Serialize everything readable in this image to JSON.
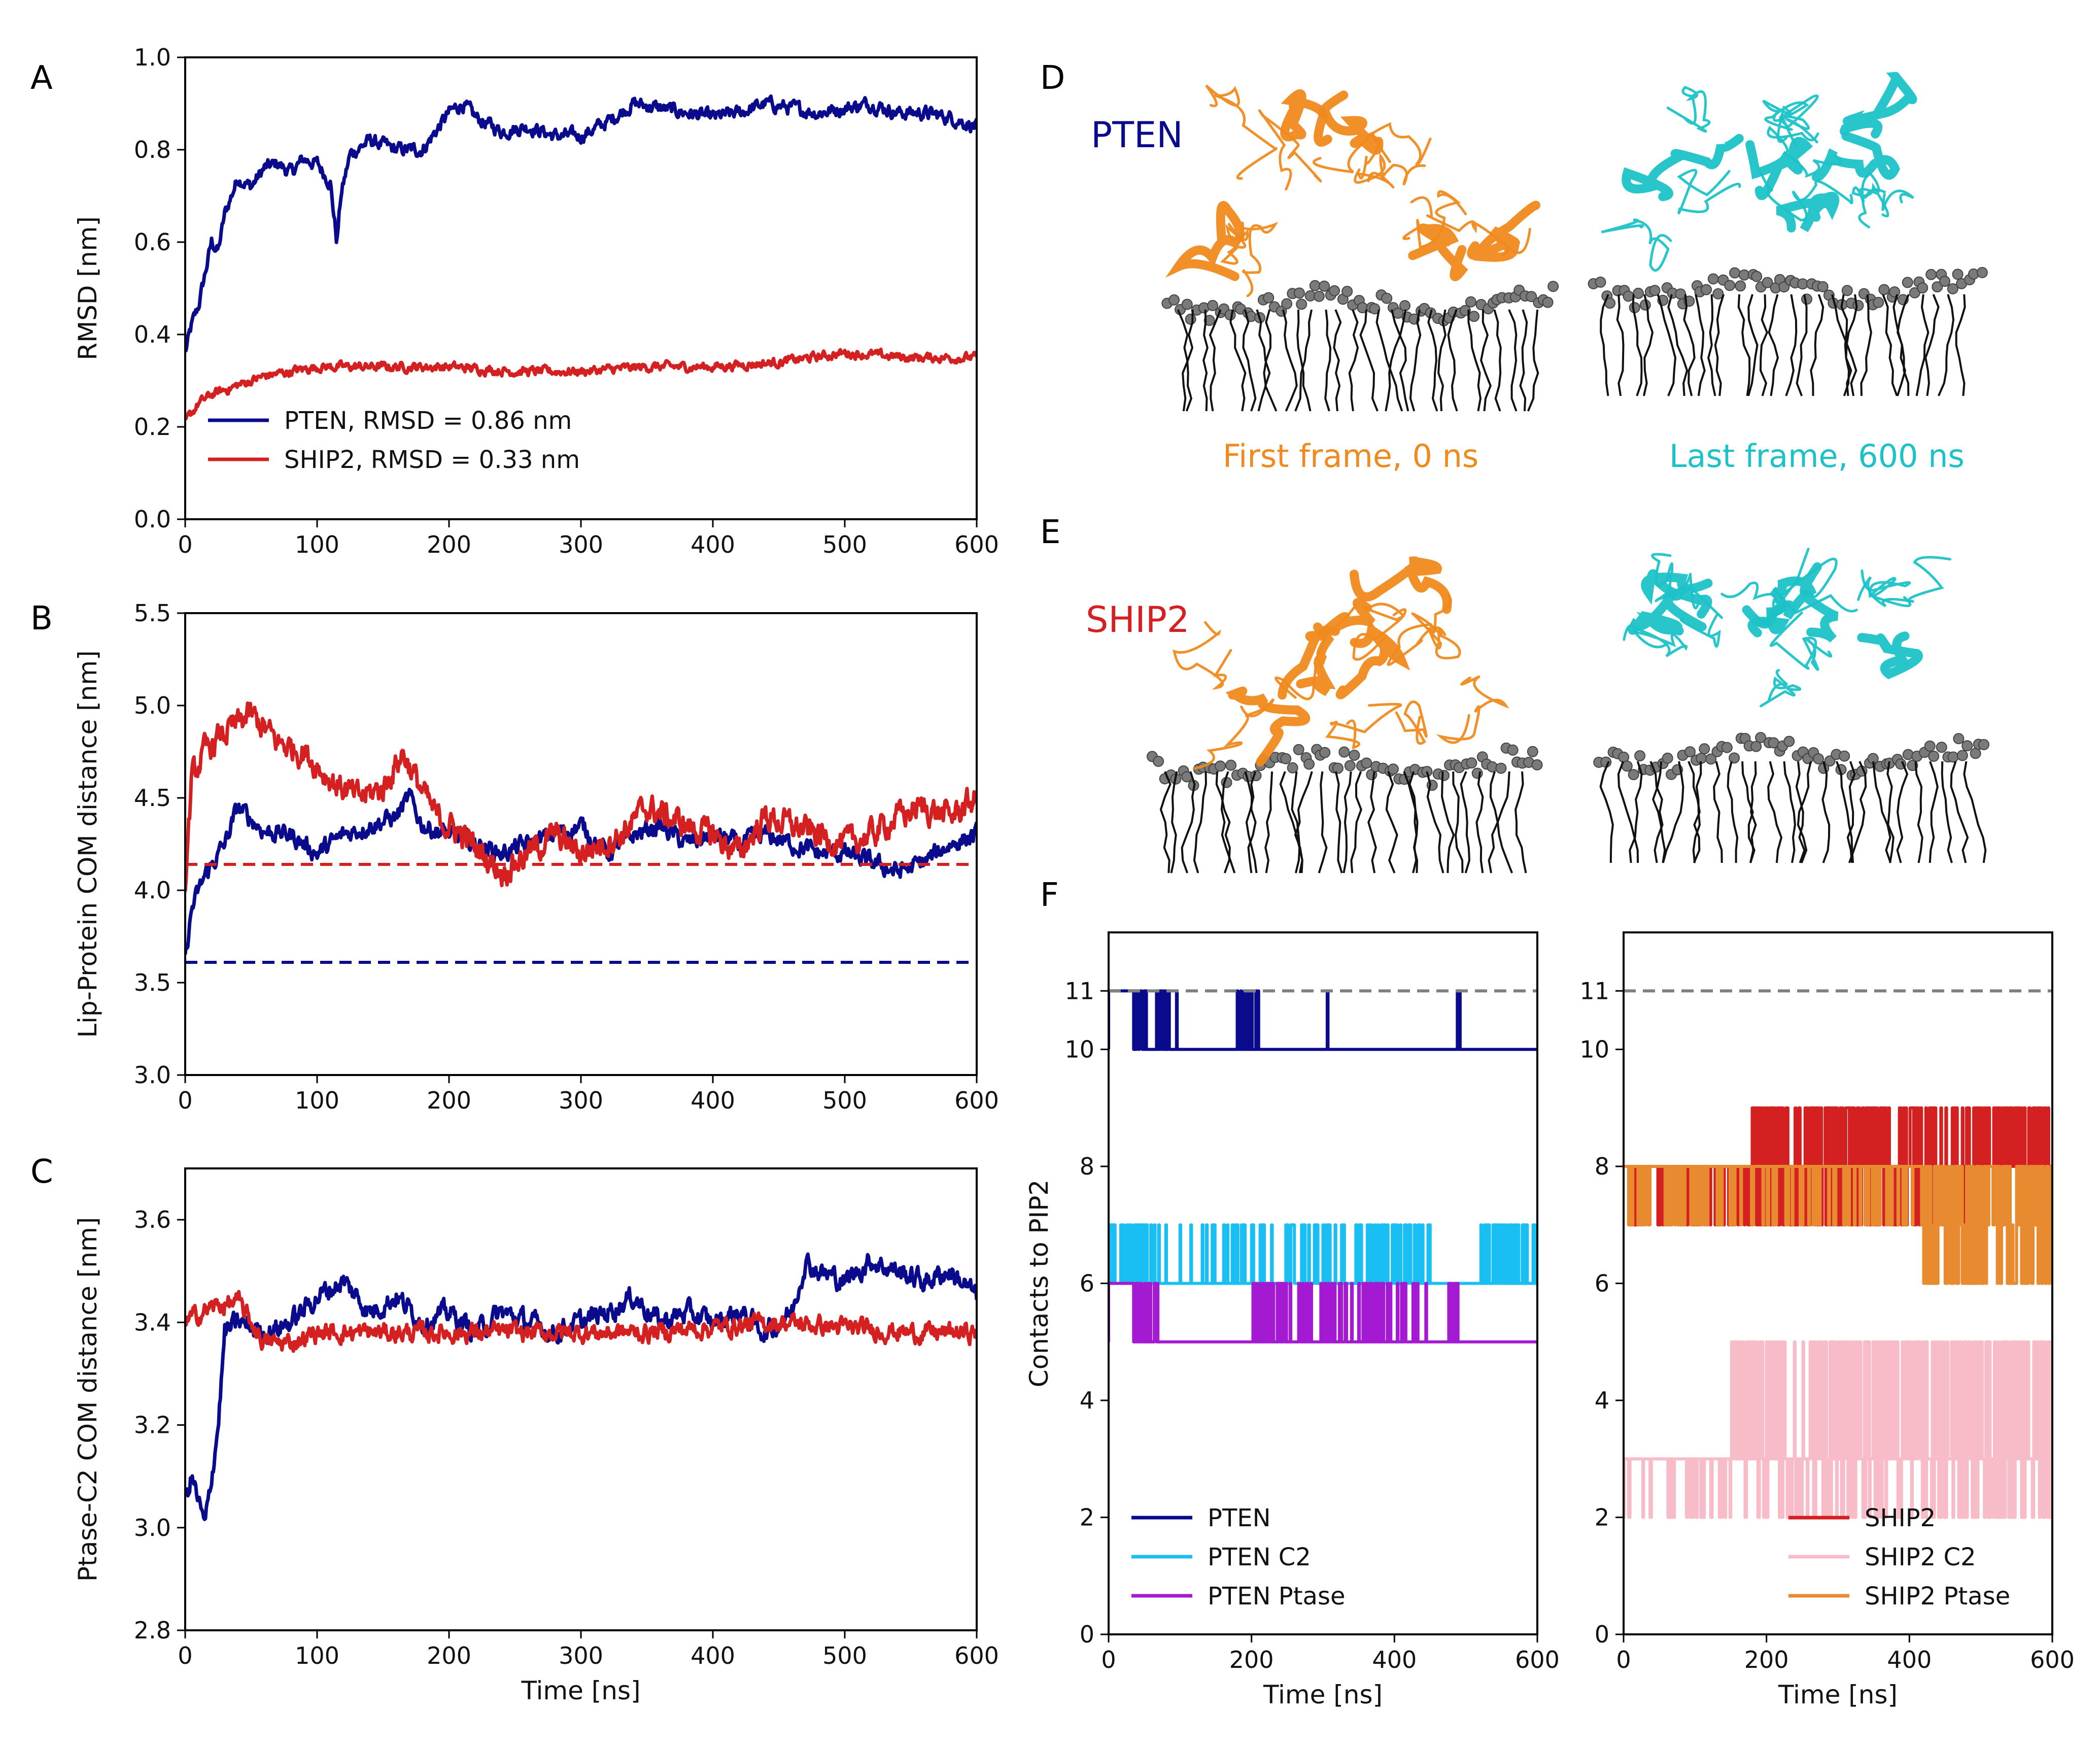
{
  "panel_letters": {
    "A": "A",
    "B": "B",
    "C": "C",
    "D": "D",
    "E": "E",
    "F": "F"
  },
  "colors": {
    "pten": "#0a0a8c",
    "ship2": "#d42020",
    "pten_c2": "#19bff2",
    "pten_ptase": "#a419d2",
    "ship2_c2": "#f7bcc8",
    "ship2_ptase": "#e88a30",
    "ref": "#808080",
    "first_frame": "#f08a1e",
    "last_frame": "#1cc2c8"
  },
  "structures": {
    "pten_label": "PTEN",
    "ship2_label": "SHIP2",
    "first_frame_caption": "First frame, 0 ns",
    "last_frame_caption": "Last frame, 600 ns"
  },
  "chart_data": [
    {
      "id": "A",
      "type": "line",
      "title": "",
      "xlabel": "",
      "ylabel": "RMSD [nm]",
      "xlim": [
        0,
        600
      ],
      "ylim": [
        0.0,
        1.0
      ],
      "xticks": [
        0,
        100,
        200,
        300,
        400,
        500,
        600
      ],
      "yticks": [
        0.0,
        0.2,
        0.4,
        0.6,
        0.8,
        1.0
      ],
      "ytick_labels": [
        "0.0",
        "0.2",
        "0.4",
        "0.6",
        "0.8",
        "1.0"
      ],
      "legend_position": "lower-left",
      "series": [
        {
          "name": "PTEN, RMSD = 0.86 nm",
          "color": "#0a0a8c",
          "noise": 0.018,
          "x": [
            0,
            5,
            10,
            20,
            25,
            30,
            40,
            50,
            60,
            70,
            80,
            90,
            100,
            110,
            115,
            118,
            125,
            140,
            160,
            180,
            190,
            200,
            210,
            220,
            240,
            260,
            280,
            300,
            320,
            340,
            360,
            380,
            400,
            420,
            440,
            460,
            480,
            500,
            520,
            540,
            560,
            580,
            600
          ],
          "y": [
            0.36,
            0.42,
            0.46,
            0.6,
            0.58,
            0.66,
            0.74,
            0.72,
            0.76,
            0.77,
            0.75,
            0.78,
            0.77,
            0.73,
            0.6,
            0.7,
            0.79,
            0.82,
            0.8,
            0.8,
            0.84,
            0.88,
            0.9,
            0.87,
            0.84,
            0.85,
            0.83,
            0.83,
            0.86,
            0.9,
            0.89,
            0.88,
            0.87,
            0.88,
            0.9,
            0.89,
            0.88,
            0.89,
            0.9,
            0.88,
            0.88,
            0.87,
            0.85
          ]
        },
        {
          "name": "SHIP2, RMSD = 0.33 nm",
          "color": "#d42020",
          "noise": 0.012,
          "x": [
            0,
            10,
            20,
            40,
            60,
            80,
            100,
            150,
            200,
            250,
            300,
            350,
            400,
            450,
            500,
            550,
            600
          ],
          "y": [
            0.21,
            0.25,
            0.27,
            0.29,
            0.31,
            0.32,
            0.33,
            0.33,
            0.33,
            0.32,
            0.32,
            0.33,
            0.33,
            0.34,
            0.36,
            0.35,
            0.35
          ]
        }
      ]
    },
    {
      "id": "B",
      "type": "line",
      "title": "",
      "xlabel": "",
      "ylabel": "Lip-Protein COM distance [nm]",
      "xlim": [
        0,
        600
      ],
      "ylim": [
        3.0,
        5.5
      ],
      "xticks": [
        0,
        100,
        200,
        300,
        400,
        500,
        600
      ],
      "yticks": [
        3.0,
        3.5,
        4.0,
        4.5,
        5.0,
        5.5
      ],
      "ytick_labels": [
        "3.0",
        "3.5",
        "4.0",
        "4.5",
        "5.0",
        "5.5"
      ],
      "series": [
        {
          "name": "PTEN",
          "color": "#0a0a8c",
          "noise": 0.06,
          "x": [
            0,
            5,
            15,
            30,
            40,
            60,
            80,
            100,
            120,
            140,
            160,
            170,
            180,
            200,
            220,
            240,
            260,
            280,
            300,
            320,
            340,
            360,
            380,
            400,
            420,
            440,
            460,
            480,
            500,
            520,
            540,
            560,
            580,
            600
          ],
          "y": [
            3.62,
            3.9,
            4.08,
            4.25,
            4.45,
            4.32,
            4.3,
            4.2,
            4.3,
            4.35,
            4.4,
            4.5,
            4.35,
            4.3,
            4.25,
            4.2,
            4.25,
            4.3,
            4.35,
            4.2,
            4.3,
            4.35,
            4.25,
            4.3,
            4.25,
            4.3,
            4.25,
            4.2,
            4.2,
            4.15,
            4.1,
            4.15,
            4.25,
            4.3
          ]
        },
        {
          "name": "SHIP2",
          "color": "#d42020",
          "noise": 0.09,
          "x": [
            0,
            5,
            15,
            30,
            50,
            70,
            90,
            110,
            130,
            150,
            165,
            175,
            190,
            210,
            240,
            260,
            280,
            300,
            330,
            350,
            380,
            400,
            420,
            440,
            460,
            480,
            500,
            520,
            540,
            560,
            580,
            600
          ],
          "y": [
            4.05,
            4.6,
            4.75,
            4.85,
            4.95,
            4.8,
            4.75,
            4.6,
            4.5,
            4.55,
            4.75,
            4.6,
            4.4,
            4.3,
            4.1,
            4.2,
            4.3,
            4.2,
            4.3,
            4.45,
            4.35,
            4.3,
            4.2,
            4.4,
            4.35,
            4.3,
            4.25,
            4.3,
            4.4,
            4.45,
            4.4,
            4.5
          ]
        },
        {
          "name": "PTEN reference",
          "color": "#0a0a8c",
          "dashed": true,
          "x": [
            0,
            600
          ],
          "y": [
            3.61,
            3.61
          ]
        },
        {
          "name": "SHIP2 reference",
          "color": "#d42020",
          "dashed": true,
          "x": [
            0,
            600
          ],
          "y": [
            4.14,
            4.14
          ]
        }
      ]
    },
    {
      "id": "C",
      "type": "line",
      "title": "",
      "xlabel": "Time [ns]",
      "ylabel": "Ptase-C2 COM distance [nm]",
      "xlim": [
        0,
        600
      ],
      "ylim": [
        2.8,
        3.7
      ],
      "xticks": [
        0,
        100,
        200,
        300,
        400,
        500,
        600
      ],
      "yticks": [
        2.8,
        3.0,
        3.2,
        3.4,
        3.6
      ],
      "ytick_labels": [
        "2.8",
        "3.0",
        "3.2",
        "3.4",
        "3.6"
      ],
      "series": [
        {
          "name": "PTEN",
          "color": "#0a0a8c",
          "noise": 0.025,
          "x": [
            0,
            5,
            10,
            15,
            20,
            25,
            30,
            40,
            60,
            80,
            100,
            120,
            140,
            160,
            180,
            200,
            220,
            240,
            260,
            280,
            300,
            320,
            340,
            360,
            380,
            400,
            420,
            440,
            460,
            470,
            480,
            500,
            520,
            540,
            560,
            580,
            600
          ],
          "y": [
            3.05,
            3.1,
            3.05,
            3.0,
            3.1,
            3.2,
            3.38,
            3.4,
            3.38,
            3.4,
            3.45,
            3.48,
            3.42,
            3.45,
            3.4,
            3.42,
            3.38,
            3.42,
            3.4,
            3.38,
            3.4,
            3.42,
            3.45,
            3.4,
            3.42,
            3.4,
            3.42,
            3.38,
            3.42,
            3.52,
            3.5,
            3.48,
            3.52,
            3.5,
            3.48,
            3.5,
            3.45
          ]
        },
        {
          "name": "SHIP2",
          "color": "#d42020",
          "noise": 0.022,
          "x": [
            0,
            20,
            40,
            60,
            80,
            100,
            150,
            200,
            250,
            300,
            350,
            400,
            450,
            500,
            550,
            600
          ],
          "y": [
            3.4,
            3.43,
            3.44,
            3.36,
            3.36,
            3.38,
            3.38,
            3.38,
            3.38,
            3.38,
            3.38,
            3.39,
            3.4,
            3.39,
            3.38,
            3.38
          ]
        }
      ]
    },
    {
      "id": "F_PTEN",
      "type": "line",
      "title": "",
      "xlabel": "Time [ns]",
      "ylabel": "Contacts to PIP2",
      "xlim": [
        0,
        600
      ],
      "ylim": [
        0,
        12
      ],
      "xticks": [
        0,
        200,
        400,
        600
      ],
      "yticks": [
        0,
        2,
        4,
        6,
        8,
        10,
        11
      ],
      "ytick_labels": [
        "0",
        "2",
        "4",
        "6",
        "8",
        "10",
        "11"
      ],
      "legend_position": "lower-left",
      "series": [
        {
          "name": "PTEN",
          "color": "#0a0a8c",
          "step": true,
          "base": 10,
          "alt": 11,
          "lead_end": 35,
          "lead_value": 11,
          "toggles": [
            [
              35,
              50,
              8
            ],
            [
              50,
              95,
              10
            ],
            [
              180,
              210,
              6
            ],
            [
              300,
              310,
              2
            ],
            [
              485,
              492,
              2
            ]
          ]
        },
        {
          "name": "PTEN C2",
          "color": "#19bff2",
          "step": true,
          "base": 6,
          "alt": 7,
          "toggles": [
            [
              0,
              80,
              14
            ],
            [
              100,
              200,
              12
            ],
            [
              200,
              450,
              60
            ],
            [
              520,
              600,
              12
            ]
          ]
        },
        {
          "name": "PTEN Ptase",
          "color": "#a419d2",
          "step": true,
          "base": 5,
          "alt": 6,
          "lead_end": 35,
          "lead_value": 6,
          "toggles": [
            [
              35,
              70,
              10
            ],
            [
              200,
              390,
              40
            ],
            [
              390,
              490,
              8
            ]
          ]
        },
        {
          "name": "11 reference",
          "color": "#808080",
          "dashed": true,
          "legend": false,
          "x": [
            0,
            600
          ],
          "y": [
            11,
            11
          ]
        }
      ]
    },
    {
      "id": "F_SHIP2",
      "type": "line",
      "title": "",
      "xlabel": "Time [ns]",
      "ylabel": "",
      "xlim": [
        0,
        600
      ],
      "ylim": [
        0,
        12
      ],
      "xticks": [
        0,
        200,
        400,
        600
      ],
      "yticks": [
        0,
        2,
        4,
        6,
        8,
        10,
        11
      ],
      "ytick_labels": [
        "0",
        "2",
        "4",
        "6",
        "8",
        "10",
        "11"
      ],
      "legend_position": "lower-right",
      "series": [
        {
          "name": "SHIP2",
          "color": "#d42020",
          "step": true,
          "base": 8,
          "alt": 7,
          "high": 9,
          "high_from": 180,
          "toggles": [
            [
              0,
              600,
              110
            ]
          ]
        },
        {
          "name": "SHIP2 C2",
          "color": "#f7bcc8",
          "step": true,
          "base": 3,
          "alt": 2,
          "high": 5,
          "high_from": 150,
          "toggles": [
            [
              0,
              600,
              90
            ]
          ]
        },
        {
          "name": "SHIP2 Ptase",
          "color": "#e88a30",
          "step": true,
          "base": 8,
          "alt": 7,
          "high": 6,
          "high_from": 420,
          "toggles": [
            [
              0,
              600,
              80
            ]
          ]
        },
        {
          "name": "11 reference",
          "color": "#808080",
          "dashed": true,
          "legend": false,
          "x": [
            0,
            600
          ],
          "y": [
            11,
            11
          ]
        }
      ]
    }
  ]
}
